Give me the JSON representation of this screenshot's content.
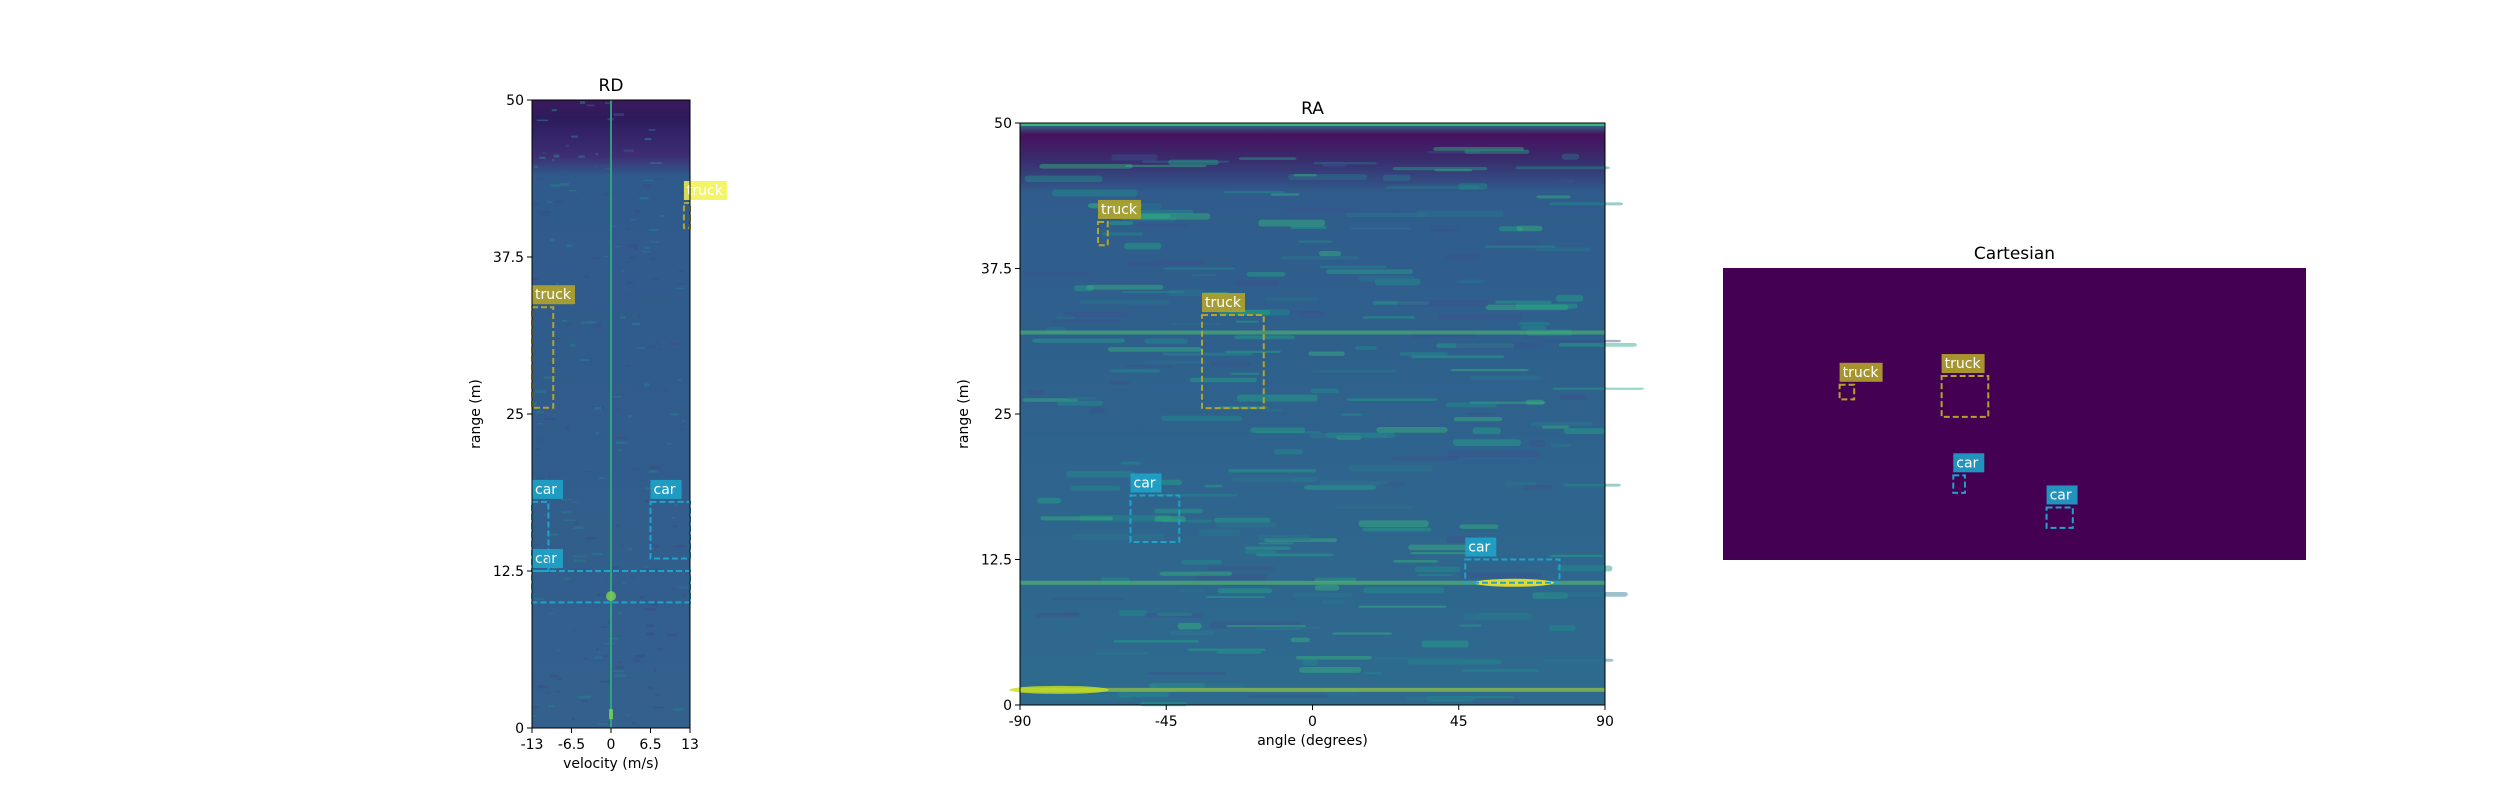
{
  "colors": {
    "car": "#1fa3c9",
    "truck": "#b2a42a",
    "truck_highlight": "#f2f24e",
    "heat_low": "#440154",
    "heat_mid": "#31688e",
    "heat_high": "#fde725",
    "cartesian_bg": "#440154"
  },
  "chart_data": [
    {
      "type": "heatmap",
      "title": "RD",
      "xlabel": "velocity (m/s)",
      "ylabel": "range (m)",
      "xlim": [
        -13,
        13
      ],
      "ylim": [
        0,
        50
      ],
      "xticks": [
        "-13",
        "-6.5",
        "0",
        "6.5",
        "13"
      ],
      "xtick_values": [
        -13,
        -6.5,
        0,
        6.5,
        13
      ],
      "yticks": [
        "0",
        "12.5",
        "25",
        "37.5",
        "50"
      ],
      "ytick_values": [
        0,
        12.5,
        25,
        37.5,
        50
      ],
      "boxes": [
        {
          "label": "truck",
          "x0": 12,
          "x1": 13,
          "y0": 39.8,
          "y1": 41.8,
          "highlight": true
        },
        {
          "label": "truck",
          "x0": -13,
          "x1": -9.5,
          "y0": 25.5,
          "y1": 33.5
        },
        {
          "label": "car",
          "x0": 6.5,
          "x1": 13,
          "y0": 13.5,
          "y1": 18
        },
        {
          "label": "car",
          "x0": -13,
          "x1": 13,
          "y0": 10,
          "y1": 12.5
        },
        {
          "label": "car",
          "x0": -13,
          "x1": -10.3,
          "y0": 12.5,
          "y1": 18
        }
      ]
    },
    {
      "type": "heatmap",
      "title": "RA",
      "xlabel": "angle (degrees)",
      "ylabel": "range (m)",
      "xlim": [
        -90,
        90
      ],
      "ylim": [
        0,
        50
      ],
      "xticks": [
        "-90",
        "-45",
        "0",
        "45",
        "90"
      ],
      "xtick_values": [
        -90,
        -45,
        0,
        45,
        90
      ],
      "yticks": [
        "0",
        "12.5",
        "25",
        "37.5",
        "50"
      ],
      "ytick_values": [
        0,
        12.5,
        25,
        37.5,
        50
      ],
      "boxes": [
        {
          "label": "truck",
          "x0": -66,
          "x1": -63,
          "y0": 39.5,
          "y1": 41.5
        },
        {
          "label": "truck",
          "x0": -34,
          "x1": -15,
          "y0": 25.5,
          "y1": 33.5
        },
        {
          "label": "car",
          "x0": -56,
          "x1": -41,
          "y0": 14,
          "y1": 18
        },
        {
          "label": "car",
          "x0": 47,
          "x1": 76,
          "y0": 10.5,
          "y1": 12.5
        }
      ]
    },
    {
      "type": "heatmap",
      "title": "Cartesian",
      "xlim": [
        0,
        100
      ],
      "ylim": [
        0,
        50
      ],
      "boxes": [
        {
          "label": "truck",
          "x0": 20,
          "x1": 22.5,
          "y0": 27.5,
          "y1": 30
        },
        {
          "label": "truck",
          "x0": 37.5,
          "x1": 45.5,
          "y0": 24.5,
          "y1": 31.5
        },
        {
          "label": "car",
          "x0": 39.5,
          "x1": 41.5,
          "y0": 11.5,
          "y1": 14.5
        },
        {
          "label": "car",
          "x0": 55.5,
          "x1": 60,
          "y0": 5.5,
          "y1": 9
        }
      ]
    }
  ]
}
